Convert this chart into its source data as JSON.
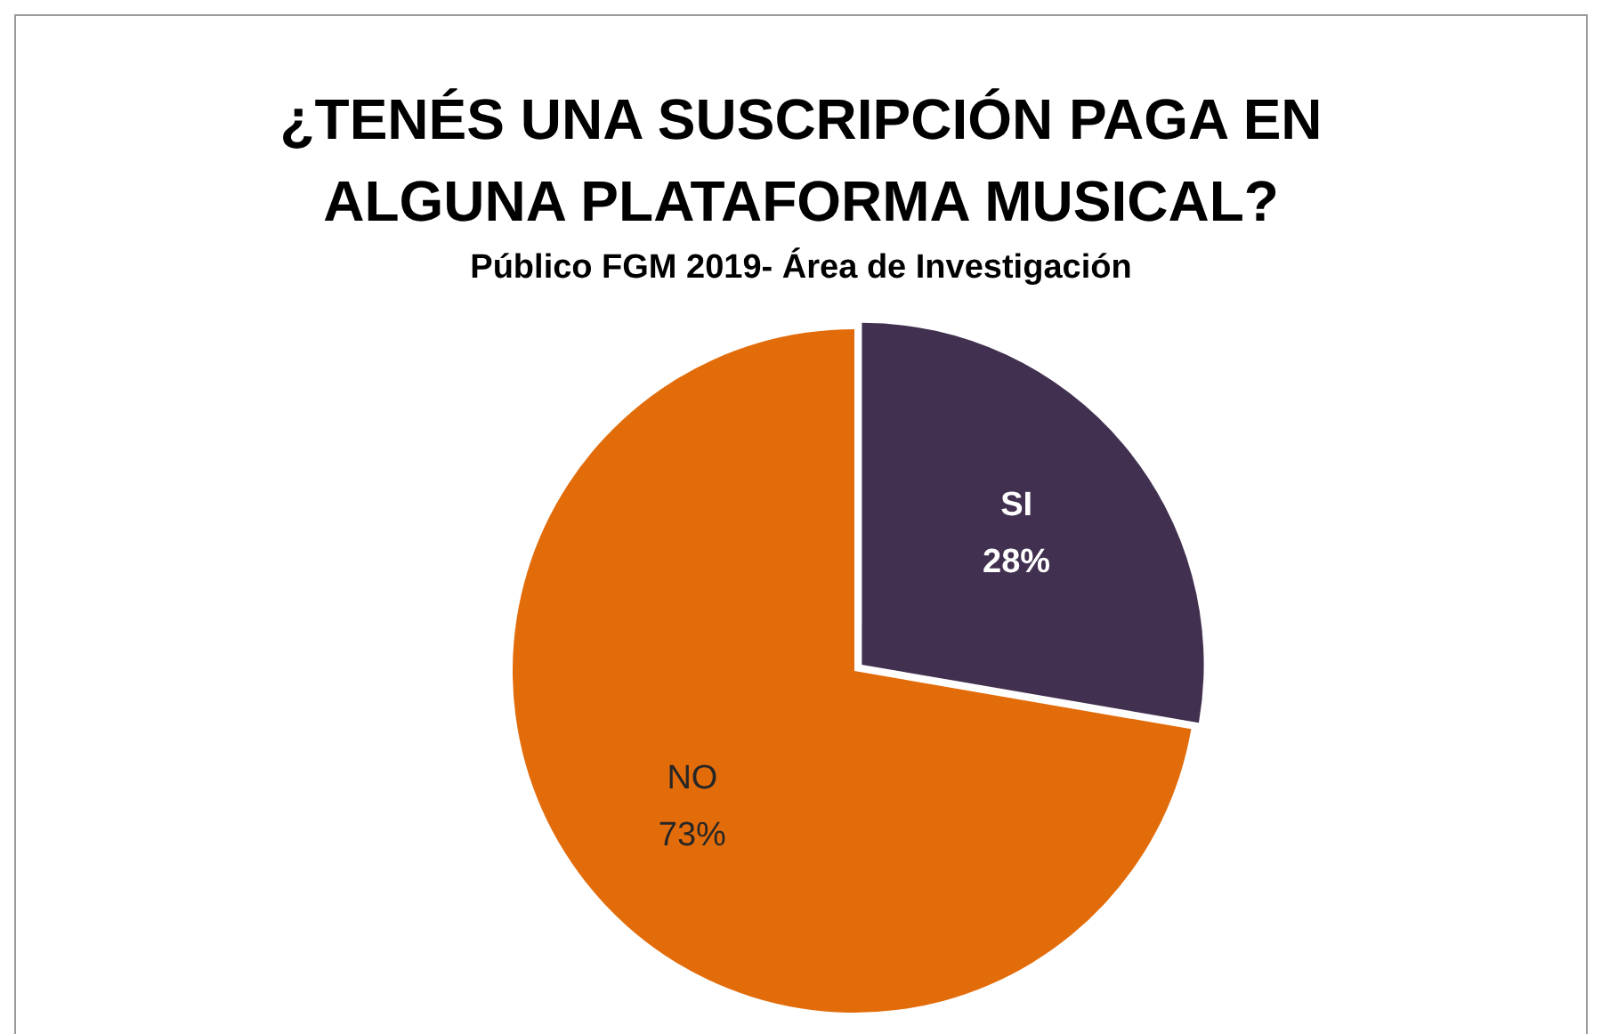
{
  "chart_data": {
    "type": "pie",
    "title": "¿TENÉS UNA SUSCRIPCIÓN PAGA EN ALGUNA PLATAFORMA MUSICAL?",
    "subtitle": "Público FGM 2019- Área de Investigación",
    "categories": [
      "SI",
      "NO"
    ],
    "values": [
      28,
      73
    ],
    "value_labels": [
      "28%",
      "73%"
    ],
    "colors": [
      "#41304f",
      "#e36c0a"
    ],
    "legend": false
  }
}
